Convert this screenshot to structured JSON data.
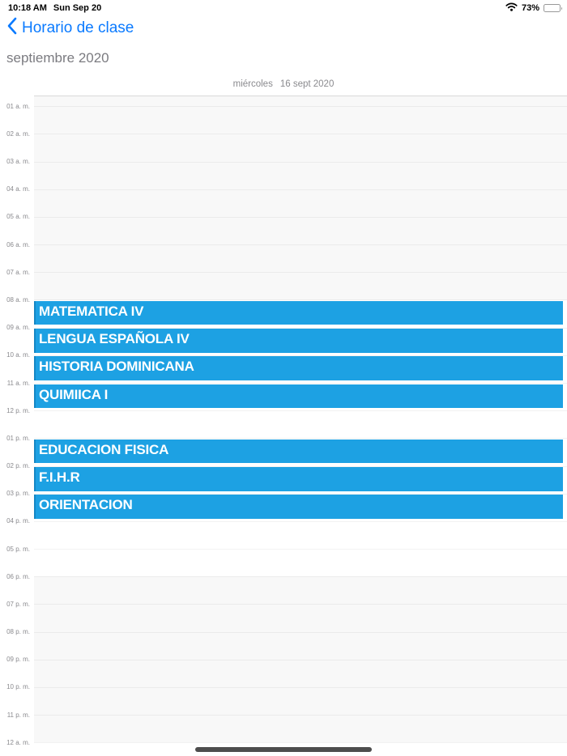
{
  "status_bar": {
    "time": "10:18 AM",
    "date": "Sun Sep 20",
    "battery_percent": "73%",
    "battery_level": 0.73,
    "icons": [
      "wifi-icon",
      "battery-icon"
    ]
  },
  "nav": {
    "back_label": "Horario de clase",
    "accent_color": "#0a7aff"
  },
  "header": {
    "month_title": "septiembre 2020",
    "day_name": "miércoles",
    "day_date": "16 sept 2020"
  },
  "calendar": {
    "hours": [
      "01 a. m.",
      "02 a. m.",
      "03 a. m.",
      "04 a. m.",
      "05 a. m.",
      "06 a. m.",
      "07 a. m.",
      "08 a. m.",
      "09 a. m.",
      "10 a. m.",
      "11 a. m.",
      "12 p. m.",
      "01 p. m.",
      "02 p. m.",
      "03 p. m.",
      "04 p. m.",
      "05 p. m.",
      "06 p. m.",
      "07 p. m.",
      "08 p. m.",
      "09 p. m.",
      "10 p. m.",
      "11 p. m.",
      "12 a. m."
    ],
    "events": [
      {
        "title": "MATEMATICA IV",
        "row": 7,
        "start": "08 a. m.",
        "end": "09 a. m."
      },
      {
        "title": "LENGUA ESPAÑOLA IV",
        "row": 8,
        "start": "09 a. m.",
        "end": "10 a. m."
      },
      {
        "title": "HISTORIA DOMINICANA",
        "row": 9,
        "start": "10 a. m.",
        "end": "11 a. m."
      },
      {
        "title": "QUIMIICA I",
        "row": 10,
        "start": "11 a. m.",
        "end": "12 p. m."
      },
      {
        "title": "EDUCACION FISICA",
        "row": 12,
        "start": "01 p. m.",
        "end": "02 p. m."
      },
      {
        "title": "F.I.H.R",
        "row": 13,
        "start": "02 p. m.",
        "end": "03 p. m."
      },
      {
        "title": "ORIENTACION",
        "row": 14,
        "start": "03 p. m.",
        "end": "04 p. m."
      }
    ],
    "colors": {
      "event_bg": "#1da1e3",
      "event_edge": "#1587c5",
      "shade_bg": "#f8f8f8",
      "label_gray": "#8a8a8e"
    }
  }
}
